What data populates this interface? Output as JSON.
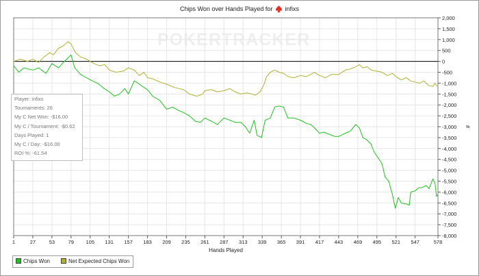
{
  "title": {
    "prefix": "Chips Won over Hands Played for",
    "player": "infixs"
  },
  "watermark": "POKERTRACKER",
  "stats_box": [
    "Player: infixs",
    "Tournaments: 26",
    "My C Net Won: -$16.00",
    "My C / Tournament: -$0.62",
    "Days Played: 1",
    "My C / Day: -$16.00",
    "ROI %: -61.54"
  ],
  "legend": [
    {
      "label": "Chips Won",
      "color": "#20c020"
    },
    {
      "label": "Net Expected Chips Won",
      "color": "#b0b030"
    }
  ],
  "colors": {
    "chips_won": "#20c020",
    "net_expected": "#b0b030",
    "grid": "#e6e6e6",
    "zero_line": "#000000"
  },
  "chart_data": {
    "type": "line",
    "title": "Chips Won over Hands Played for infixs",
    "xlabel": "Hands Played",
    "ylabel": "#",
    "xlim": [
      1,
      578
    ],
    "ylim": [
      -8000,
      2000
    ],
    "x_ticks": [
      1,
      27,
      53,
      79,
      105,
      131,
      157,
      183,
      209,
      235,
      261,
      287,
      313,
      339,
      365,
      391,
      417,
      443,
      469,
      495,
      521,
      547,
      578
    ],
    "y_ticks": [
      2000,
      1500,
      1000,
      500,
      0,
      -500,
      -1000,
      -1500,
      -2000,
      -2500,
      -3000,
      -3500,
      -4000,
      -4500,
      -5000,
      -5500,
      -6000,
      -6500,
      -7000,
      -7500,
      -8000
    ],
    "y_tick_labels": [
      "2,000",
      "1,500",
      "1,000",
      "500",
      "0",
      "-500",
      "-1,000",
      "-1,500",
      "-2,000",
      "-2,500",
      "-3,000",
      "-3,500",
      "-4,000",
      "-4,500",
      "-5,000",
      "-5,500",
      "-6,000",
      "-6,500",
      "-7,000",
      "-7,500",
      "-8,000"
    ],
    "grid": true,
    "legend_position": "bottom-left",
    "series": [
      {
        "name": "Chips Won",
        "color": "#20c020",
        "points": [
          [
            1,
            -200
          ],
          [
            8,
            -500
          ],
          [
            15,
            -300
          ],
          [
            27,
            -400
          ],
          [
            35,
            -300
          ],
          [
            45,
            -550
          ],
          [
            53,
            -100
          ],
          [
            62,
            -300
          ],
          [
            70,
            0
          ],
          [
            79,
            300
          ],
          [
            84,
            -300
          ],
          [
            92,
            -600
          ],
          [
            100,
            -750
          ],
          [
            108,
            -900
          ],
          [
            115,
            -1000
          ],
          [
            124,
            -1250
          ],
          [
            131,
            -1400
          ],
          [
            138,
            -1600
          ],
          [
            145,
            -1500
          ],
          [
            152,
            -1250
          ],
          [
            157,
            -1500
          ],
          [
            165,
            -900
          ],
          [
            170,
            -1000
          ],
          [
            176,
            -1150
          ],
          [
            183,
            -1300
          ],
          [
            190,
            -1600
          ],
          [
            200,
            -1800
          ],
          [
            209,
            -2200
          ],
          [
            217,
            -2100
          ],
          [
            225,
            -2250
          ],
          [
            232,
            -2350
          ],
          [
            240,
            -2500
          ],
          [
            248,
            -2750
          ],
          [
            255,
            -2800
          ],
          [
            261,
            -2600
          ],
          [
            270,
            -2750
          ],
          [
            278,
            -2900
          ],
          [
            287,
            -2600
          ],
          [
            295,
            -2700
          ],
          [
            302,
            -2800
          ],
          [
            310,
            -2800
          ],
          [
            316,
            -3000
          ],
          [
            322,
            -3300
          ],
          [
            328,
            -2700
          ],
          [
            332,
            -3400
          ],
          [
            338,
            -3500
          ],
          [
            343,
            -2700
          ],
          [
            350,
            -2600
          ],
          [
            356,
            -2100
          ],
          [
            362,
            -2050
          ],
          [
            368,
            -2100
          ],
          [
            374,
            -2600
          ],
          [
            382,
            -2600
          ],
          [
            391,
            -2700
          ],
          [
            399,
            -2850
          ],
          [
            405,
            -2900
          ],
          [
            410,
            -3050
          ],
          [
            417,
            -3300
          ],
          [
            423,
            -3250
          ],
          [
            430,
            -3350
          ],
          [
            438,
            -3450
          ],
          [
            443,
            -3450
          ],
          [
            452,
            -3300
          ],
          [
            459,
            -3200
          ],
          [
            466,
            -2900
          ],
          [
            471,
            -3050
          ],
          [
            476,
            -3500
          ],
          [
            481,
            -3600
          ],
          [
            487,
            -3800
          ],
          [
            491,
            -4150
          ],
          [
            496,
            -4400
          ],
          [
            502,
            -4700
          ],
          [
            506,
            -5300
          ],
          [
            511,
            -5500
          ],
          [
            516,
            -6100
          ],
          [
            520,
            -6750
          ],
          [
            524,
            -6250
          ],
          [
            528,
            -6500
          ],
          [
            535,
            -6550
          ],
          [
            539,
            -6600
          ],
          [
            541,
            -6000
          ],
          [
            547,
            -5950
          ],
          [
            552,
            -5800
          ],
          [
            556,
            -5800
          ],
          [
            562,
            -5700
          ],
          [
            566,
            -5850
          ],
          [
            571,
            -5400
          ],
          [
            574,
            -5600
          ],
          [
            576,
            -6200
          ],
          [
            578,
            -6100
          ]
        ]
      },
      {
        "name": "Net Expected Chips Won",
        "color": "#b0b030",
        "points": [
          [
            1,
            0
          ],
          [
            10,
            100
          ],
          [
            20,
            0
          ],
          [
            27,
            100
          ],
          [
            35,
            -50
          ],
          [
            42,
            200
          ],
          [
            50,
            400
          ],
          [
            55,
            300
          ],
          [
            62,
            600
          ],
          [
            68,
            700
          ],
          [
            75,
            900
          ],
          [
            79,
            800
          ],
          [
            85,
            400
          ],
          [
            92,
            200
          ],
          [
            100,
            100
          ],
          [
            105,
            0
          ],
          [
            110,
            -100
          ],
          [
            118,
            -200
          ],
          [
            125,
            -150
          ],
          [
            131,
            -400
          ],
          [
            140,
            -500
          ],
          [
            150,
            -450
          ],
          [
            157,
            -300
          ],
          [
            165,
            -400
          ],
          [
            172,
            -650
          ],
          [
            178,
            -500
          ],
          [
            183,
            -750
          ],
          [
            190,
            -800
          ],
          [
            200,
            -950
          ],
          [
            209,
            -1050
          ],
          [
            220,
            -1200
          ],
          [
            232,
            -1300
          ],
          [
            240,
            -1500
          ],
          [
            250,
            -1600
          ],
          [
            258,
            -1500
          ],
          [
            261,
            -1350
          ],
          [
            270,
            -1300
          ],
          [
            278,
            -1400
          ],
          [
            287,
            -1350
          ],
          [
            295,
            -1250
          ],
          [
            302,
            -1400
          ],
          [
            310,
            -1500
          ],
          [
            318,
            -1450
          ],
          [
            325,
            -1500
          ],
          [
            330,
            -1550
          ],
          [
            336,
            -1400
          ],
          [
            341,
            -1100
          ],
          [
            345,
            -700
          ],
          [
            350,
            -500
          ],
          [
            356,
            -400
          ],
          [
            362,
            -500
          ],
          [
            368,
            -550
          ],
          [
            374,
            -700
          ],
          [
            382,
            -750
          ],
          [
            391,
            -650
          ],
          [
            399,
            -700
          ],
          [
            405,
            -600
          ],
          [
            410,
            -500
          ],
          [
            417,
            -650
          ],
          [
            425,
            -750
          ],
          [
            433,
            -600
          ],
          [
            443,
            -600
          ],
          [
            452,
            -400
          ],
          [
            459,
            -350
          ],
          [
            466,
            -250
          ],
          [
            471,
            -150
          ],
          [
            476,
            -300
          ],
          [
            482,
            -250
          ],
          [
            487,
            -400
          ],
          [
            495,
            -450
          ],
          [
            502,
            -500
          ],
          [
            509,
            -650
          ],
          [
            516,
            -550
          ],
          [
            521,
            -700
          ],
          [
            528,
            -850
          ],
          [
            535,
            -750
          ],
          [
            541,
            -900
          ],
          [
            547,
            -950
          ],
          [
            553,
            -1000
          ],
          [
            559,
            -900
          ],
          [
            565,
            -1100
          ],
          [
            571,
            -1150
          ],
          [
            574,
            -1000
          ],
          [
            576,
            -1100
          ],
          [
            578,
            -1150
          ]
        ]
      }
    ]
  }
}
